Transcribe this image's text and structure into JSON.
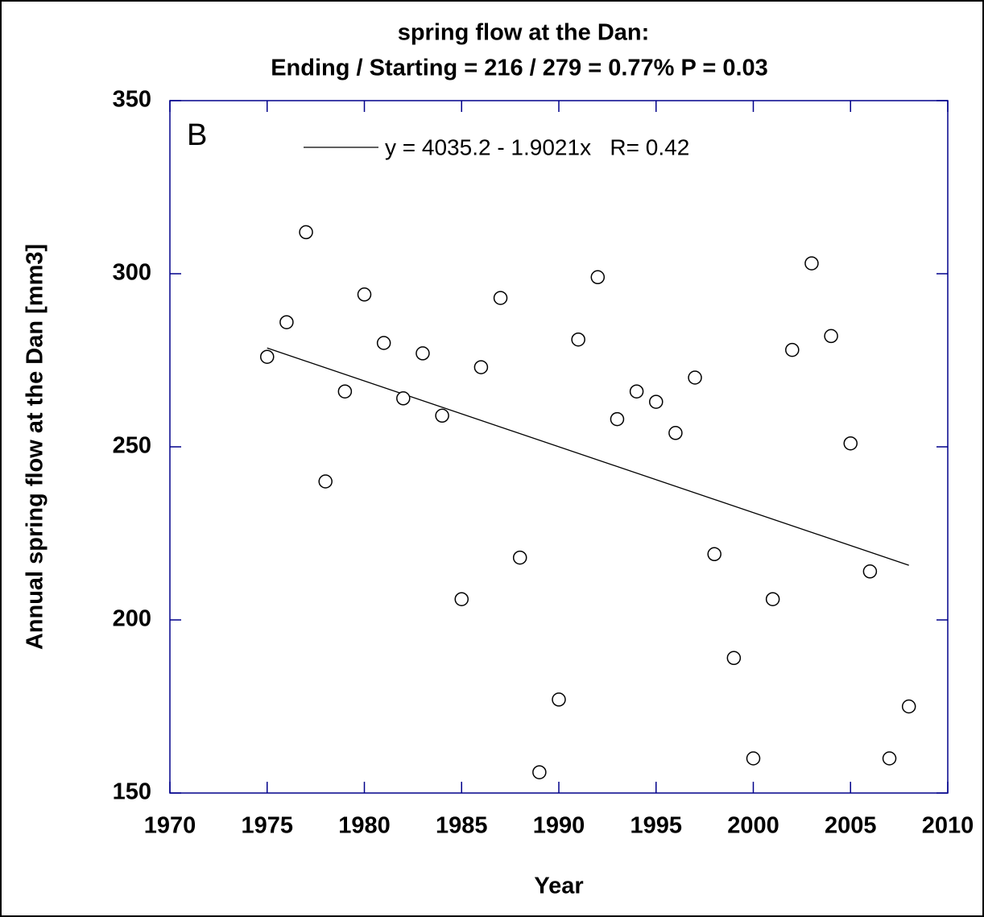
{
  "chart_data": {
    "type": "scatter",
    "title": "spring flow at the Dan:",
    "subtitle": "Ending / Starting = 216 / 279 = 0.77%  P = 0.03",
    "x_label": "Year",
    "y_label": "Annual spring flow at the Dan [mm3]",
    "annotation": "B",
    "x": [
      1975,
      1976,
      1977,
      1978,
      1979,
      1980,
      1981,
      1982,
      1983,
      1984,
      1985,
      1986,
      1987,
      1988,
      1989,
      1990,
      1991,
      1992,
      1993,
      1994,
      1995,
      1996,
      1997,
      1998,
      1999,
      2000,
      2001,
      2002,
      2003,
      2004,
      2005,
      2006,
      2007,
      2008
    ],
    "values": [
      276,
      286,
      312,
      240,
      266,
      294,
      280,
      264,
      277,
      259,
      206,
      273,
      293,
      218,
      156,
      177,
      281,
      299,
      258,
      266,
      263,
      254,
      270,
      219,
      189,
      160,
      206,
      278,
      303,
      282,
      251,
      214,
      160,
      175
    ],
    "trend": {
      "name": "y = 4035.2 - 1.9021x   R= 0.42",
      "x": [
        1975,
        2008
      ],
      "values": [
        278.55,
        215.78
      ]
    },
    "xlim": [
      1970,
      2010
    ],
    "ylim": [
      150,
      350
    ],
    "xticks": [
      1970,
      1975,
      1980,
      1985,
      1990,
      1995,
      2000,
      2005,
      2010
    ],
    "yticks": [
      150,
      200,
      250,
      300,
      350
    ],
    "axis_color": "#00008b",
    "marker_color": "#000000"
  }
}
